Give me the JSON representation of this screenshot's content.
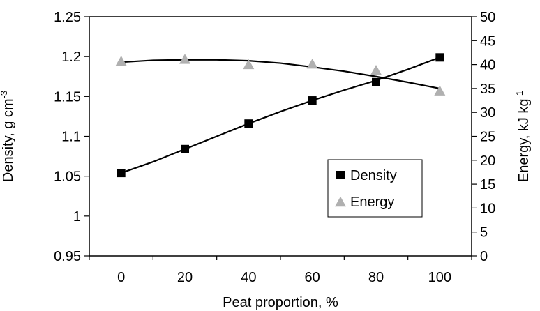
{
  "chart_data": {
    "type": "line",
    "xlabel": "Peat proportion, %",
    "ylabel_left": "Density, g cm",
    "ylabel_left_exp": "-3",
    "ylabel_right": "Energy, kJ kg",
    "ylabel_right_exp": "-1",
    "x_ticks": [
      "0",
      "20",
      "40",
      "60",
      "80",
      "100"
    ],
    "y_left_ticks": [
      "0.95",
      "1",
      "1.05",
      "1.1",
      "1.15",
      "1.2",
      "1.25"
    ],
    "y_right_ticks": [
      "0",
      "5",
      "10",
      "15",
      "20",
      "25",
      "30",
      "35",
      "40",
      "45",
      "50"
    ],
    "xlim": [
      -10,
      110
    ],
    "ylim_left": [
      0.95,
      1.25
    ],
    "ylim_right": [
      0,
      50
    ],
    "grid": false,
    "legend_position": "lower-right inside plot",
    "series": [
      {
        "name": "Density",
        "axis": "left",
        "marker": "square",
        "color": "#000000",
        "x": [
          0,
          20,
          40,
          60,
          80,
          100
        ],
        "values": [
          1.054,
          1.084,
          1.116,
          1.145,
          1.168,
          1.199
        ]
      },
      {
        "name": "Energy",
        "axis": "right",
        "marker": "triangle",
        "color": "#b0b0b0",
        "x": [
          0,
          20,
          40,
          60,
          80,
          100
        ],
        "values": [
          40.8,
          41.2,
          40.1,
          40.2,
          38.9,
          34.6
        ]
      }
    ],
    "trendlines": [
      {
        "series": "Density",
        "axis": "left",
        "color": "#000000",
        "x": [
          0,
          10,
          20,
          30,
          40,
          50,
          60,
          70,
          80,
          90,
          100
        ],
        "values": [
          1.054,
          1.068,
          1.084,
          1.1,
          1.116,
          1.131,
          1.145,
          1.158,
          1.17,
          1.184,
          1.199
        ]
      },
      {
        "series": "Energy",
        "axis": "right",
        "color": "#000000",
        "x": [
          0,
          10,
          20,
          30,
          40,
          50,
          60,
          70,
          80,
          90,
          100
        ],
        "values": [
          40.5,
          40.9,
          41.0,
          41.0,
          40.8,
          40.3,
          39.5,
          38.6,
          37.5,
          36.3,
          35.0
        ]
      }
    ]
  }
}
